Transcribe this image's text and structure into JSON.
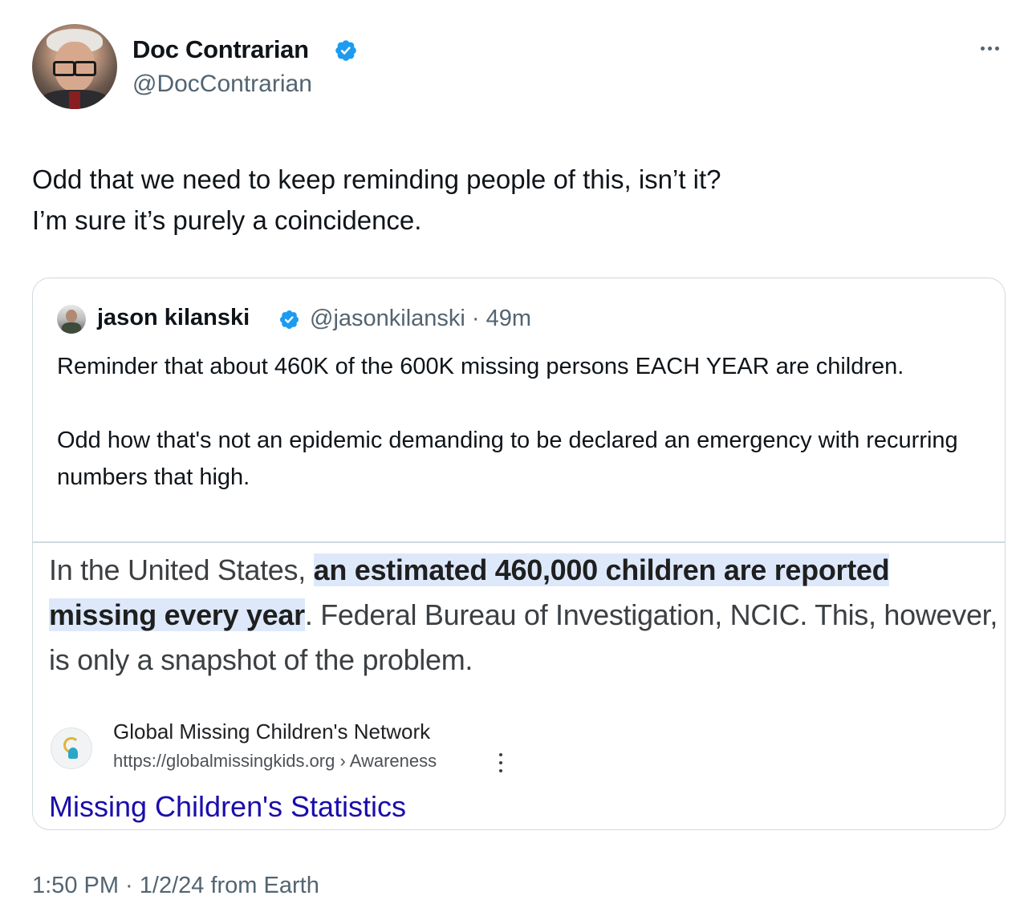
{
  "author": {
    "display_name": "Doc Contrarian",
    "handle": "@DocContrarian",
    "verified_icon": "verified-badge-icon",
    "verified_color": "#1d9bf0"
  },
  "tweet": {
    "lines": [
      "Odd that we need to keep reminding people of this, isn’t it?",
      "I’m sure it’s purely a coincidence."
    ],
    "timestamp": "1:50 PM · 1/2/24 from Earth"
  },
  "quoted": {
    "display_name": "jason kilanski",
    "handle_time": "@jasonkilanski · 49m",
    "paragraphs": [
      "Reminder that about 460K of the 600K missing persons EACH YEAR are children.",
      "Odd how that's not an epidemic demanding to be declared an emergency with recurring numbers that high."
    ],
    "image": {
      "snippet_before": "In the United States, ",
      "snippet_highlight": "an estimated 460,000 children are reported missing every year",
      "snippet_after": ". Federal Bureau of Investigation, NCIC. This, however, is only a snapshot of the problem.",
      "highlight_color": "#dde9fb",
      "source_name": "Global Missing Children's Network",
      "source_url": "https://globalmissingkids.org › Awareness",
      "result_title": "Missing Children's Statistics",
      "result_title_color": "#1a0dab"
    }
  }
}
